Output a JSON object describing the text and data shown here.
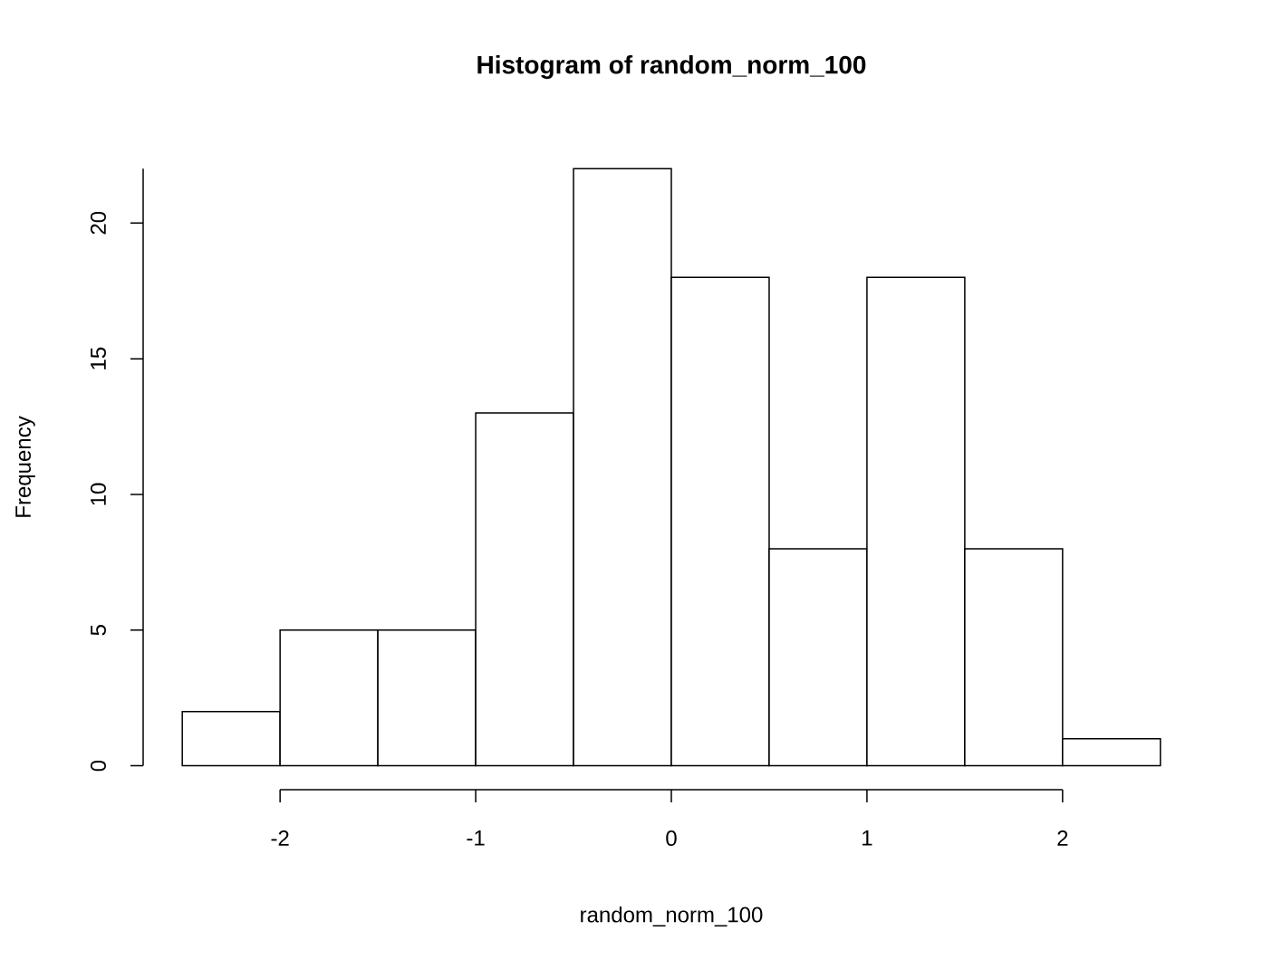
{
  "chart_data": {
    "type": "histogram",
    "title": "Histogram of random_norm_100",
    "xlabel": "random_norm_100",
    "ylabel": "Frequency",
    "bins": [
      -2.5,
      -2,
      -1.5,
      -1,
      -0.5,
      0,
      0.5,
      1,
      1.5,
      2,
      2.5
    ],
    "values": [
      2,
      5,
      5,
      13,
      22,
      18,
      8,
      18,
      8,
      1
    ],
    "color": "#ffffff",
    "xlim": [
      -2,
      2
    ],
    "ylim": [
      0,
      22
    ],
    "xticks": [
      -2,
      -1,
      0,
      1,
      2
    ],
    "yticks": [
      0,
      5,
      10,
      15,
      20
    ]
  }
}
